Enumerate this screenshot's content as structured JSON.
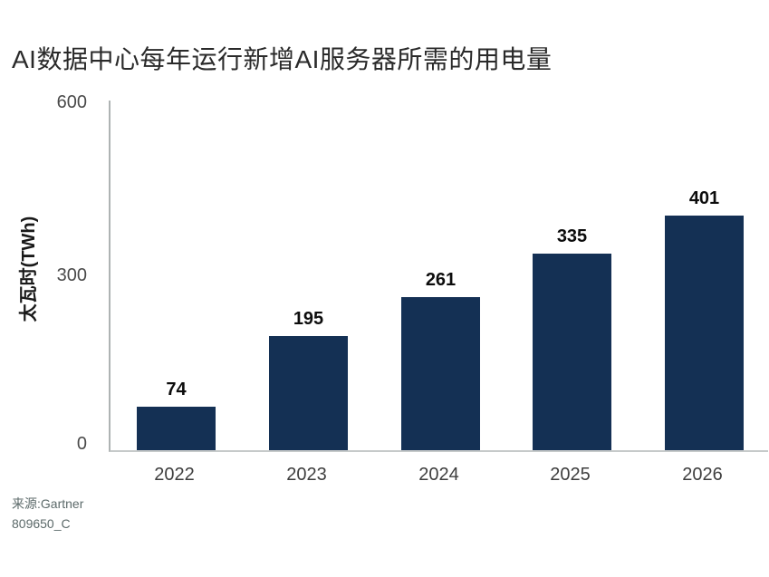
{
  "title": "AI数据中心每年运行新增AI服务器所需的用电量",
  "chart_data": {
    "type": "bar",
    "title": "AI数据中心每年运行新增AI服务器所需的用电量",
    "categories": [
      "2022",
      "2023",
      "2024",
      "2025",
      "2026"
    ],
    "values": [
      74,
      195,
      261,
      335,
      401
    ],
    "xlabel": "",
    "ylabel": "太瓦时(TWh)",
    "ylim": [
      0,
      600
    ],
    "yticks": [
      600,
      300,
      0
    ],
    "grid": false,
    "legend": "none",
    "value_labels": true,
    "bar_color": "#143054"
  },
  "source": {
    "line1": "来源:Gartner",
    "line2": "809650_C"
  },
  "colors": {
    "bar": "#143054",
    "background": "#ffffff",
    "title_text": "#2a2a2a",
    "tick_text": "#4a4a4a",
    "value_label_text": "#0c0c0c",
    "source_text": "#5c6a6a",
    "axis_line": "#b9bebe"
  }
}
